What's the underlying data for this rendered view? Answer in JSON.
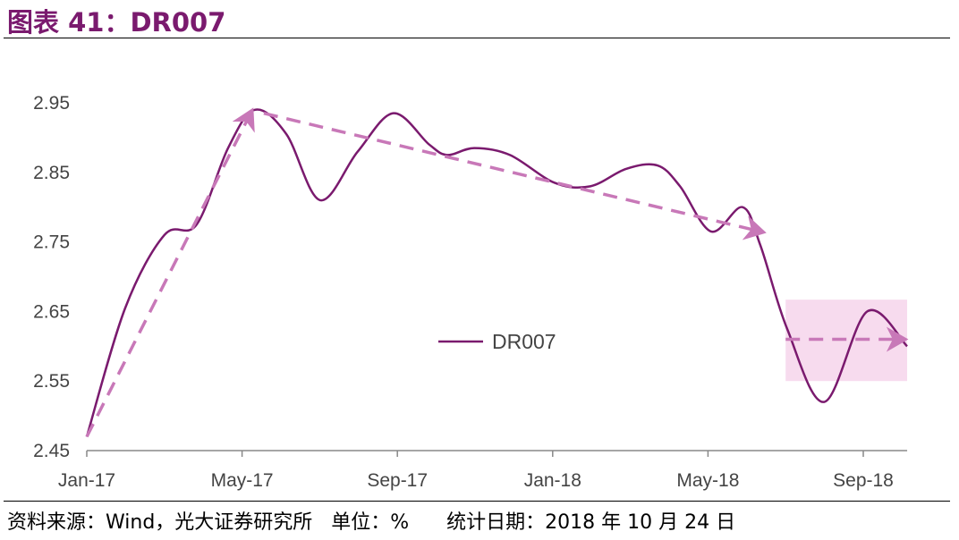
{
  "title": "图表 41：DR007",
  "footer": {
    "source": "资料来源：Wind，光大证券研究所",
    "unit": "单位：%",
    "date": "统计日期：2018 年 10 月 24 日"
  },
  "colors": {
    "line": "#7a1a6e",
    "arrow": "#c878b8",
    "shade": "#f7dbee"
  },
  "chart_data": {
    "type": "line",
    "title": "DR007",
    "xlabel": "",
    "ylabel": "",
    "ylim": [
      2.45,
      2.95
    ],
    "yticks": [
      2.45,
      2.55,
      2.65,
      2.75,
      2.85,
      2.95
    ],
    "xlim_month_index": [
      0,
      21.13
    ],
    "xticks": [
      {
        "m": 0,
        "label": "Jan-17"
      },
      {
        "m": 4,
        "label": "May-17"
      },
      {
        "m": 8,
        "label": "Sep-17"
      },
      {
        "m": 12,
        "label": "Jan-18"
      },
      {
        "m": 16,
        "label": "May-18"
      },
      {
        "m": 20,
        "label": "Sep-18"
      }
    ],
    "legend": {
      "position": "center",
      "entries": [
        "DR007"
      ]
    },
    "series": [
      {
        "name": "DR007",
        "points": [
          [
            0,
            2.47
          ],
          [
            0.99,
            2.655
          ],
          [
            2.0,
            2.76
          ],
          [
            2.83,
            2.775
          ],
          [
            3.64,
            2.885
          ],
          [
            4.33,
            2.94
          ],
          [
            5.14,
            2.905
          ],
          [
            6.01,
            2.81
          ],
          [
            6.98,
            2.88
          ],
          [
            7.9,
            2.935
          ],
          [
            8.82,
            2.89
          ],
          [
            9.29,
            2.875
          ],
          [
            9.98,
            2.885
          ],
          [
            10.9,
            2.875
          ],
          [
            12.05,
            2.835
          ],
          [
            12.97,
            2.83
          ],
          [
            13.89,
            2.855
          ],
          [
            14.7,
            2.86
          ],
          [
            15.28,
            2.83
          ],
          [
            16.08,
            2.765
          ],
          [
            16.89,
            2.8
          ],
          [
            17.35,
            2.745
          ],
          [
            18.04,
            2.625
          ],
          [
            19.0,
            2.52
          ],
          [
            20.1,
            2.65
          ],
          [
            21.13,
            2.6
          ]
        ]
      }
    ],
    "annotations": {
      "arrows": [
        {
          "from": [
            0,
            2.47
          ],
          "to": [
            4.22,
            2.935
          ]
        },
        {
          "from": [
            4.56,
            2.935
          ],
          "to": [
            17.35,
            2.765
          ]
        },
        {
          "from": [
            18.0,
            2.61
          ],
          "to": [
            21.0,
            2.61
          ]
        }
      ],
      "shaded_region": {
        "x": [
          18.0,
          21.13
        ],
        "y": [
          2.55,
          2.667
        ]
      }
    }
  }
}
